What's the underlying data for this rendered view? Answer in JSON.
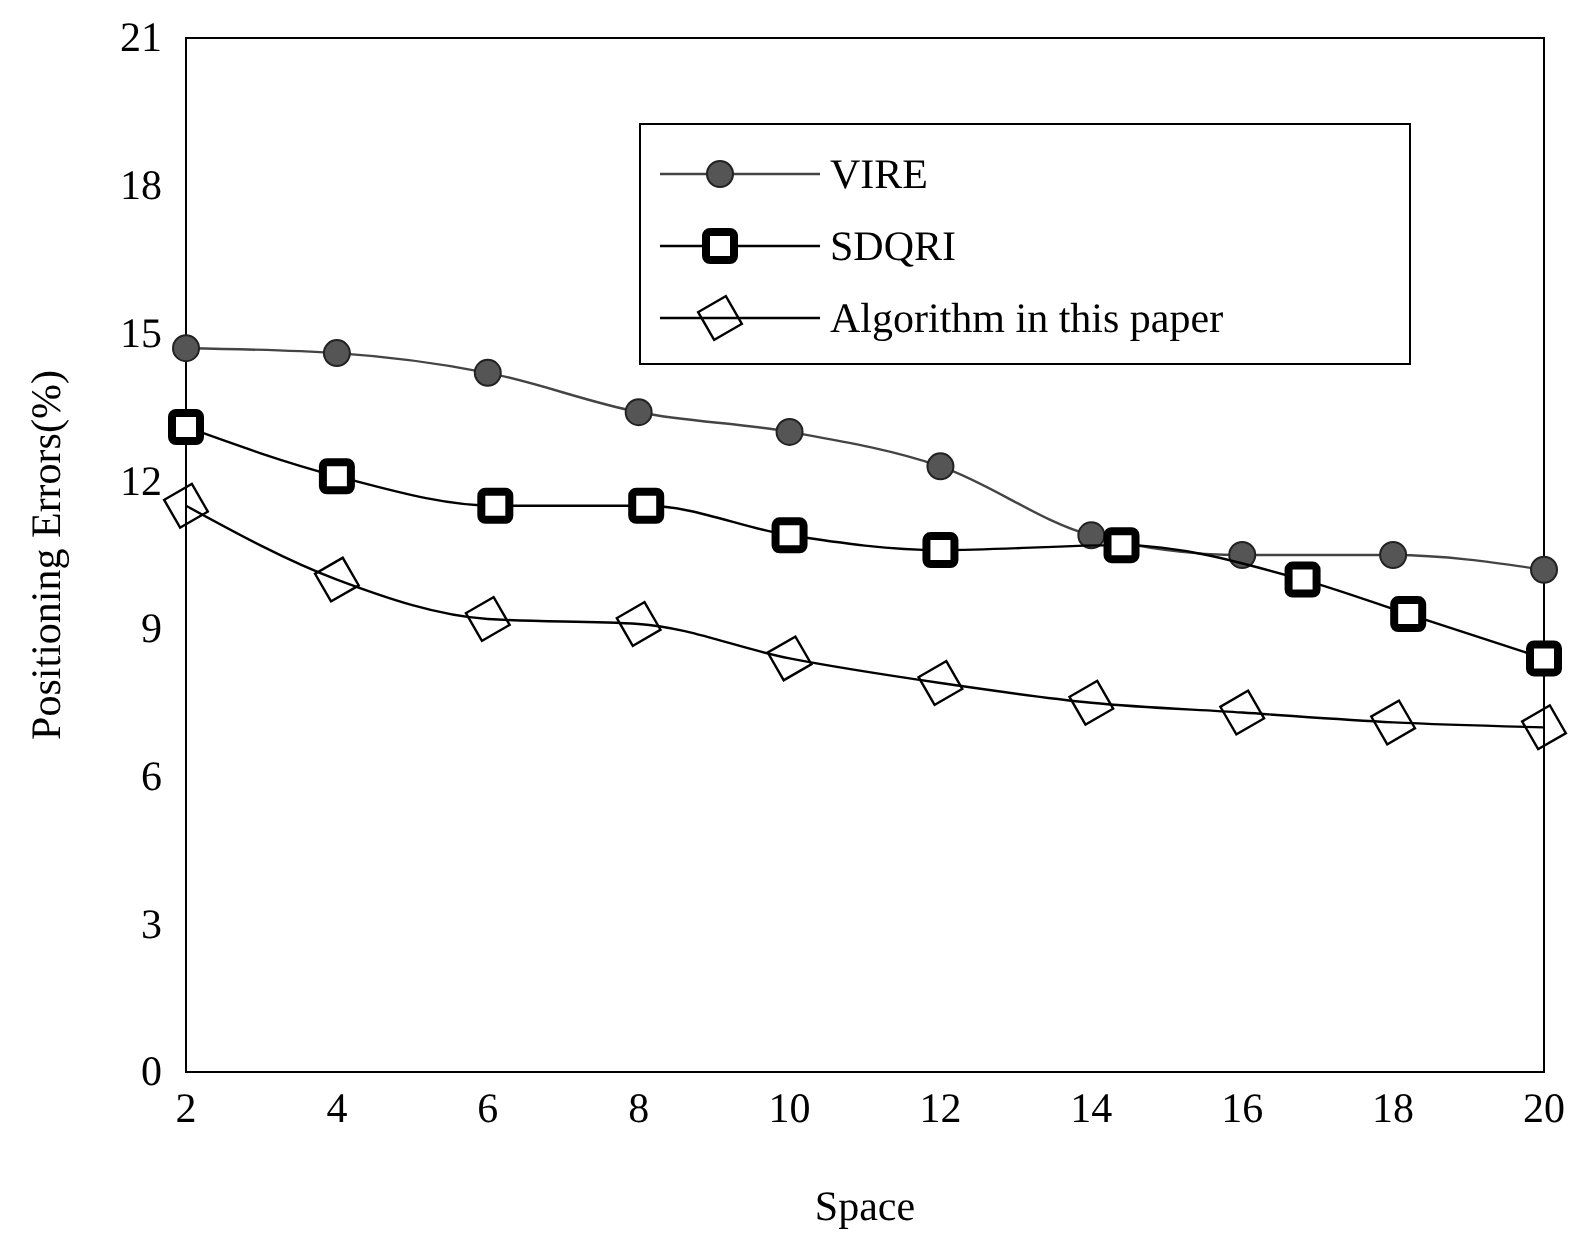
{
  "chart_data": {
    "type": "line",
    "xlabel": "Space",
    "ylabel": "Positioning Errors(%)",
    "xlim": [
      2,
      20
    ],
    "xticks": [
      2,
      4,
      6,
      8,
      10,
      12,
      14,
      16,
      18,
      20
    ],
    "ylim": [
      0,
      21
    ],
    "yticks": [
      0,
      3,
      6,
      9,
      12,
      15,
      18,
      21
    ],
    "grid": false,
    "legend": "top right",
    "line_style": "solid",
    "series": [
      {
        "name": "VIRE",
        "color": "#444444",
        "marker": "circle",
        "x": [
          2,
          4,
          6,
          8,
          10,
          12,
          14,
          16,
          18,
          20
        ],
        "values": [
          14.7,
          14.6,
          14.2,
          13.4,
          13.0,
          12.3,
          10.9,
          10.5,
          10.5,
          10.2
        ]
      },
      {
        "name": "SDQRI",
        "color": "#000000",
        "marker": "square",
        "x": [
          2,
          4,
          6.1,
          8.1,
          10,
          12,
          14.4,
          16.8,
          18.2,
          20
        ],
        "values": [
          13.1,
          12.1,
          11.5,
          11.5,
          10.9,
          10.6,
          10.7,
          10.0,
          9.3,
          8.4
        ]
      },
      {
        "name": "Algorithm in this paper",
        "color": "#000000",
        "marker": "diamond",
        "x": [
          2,
          4,
          6,
          8,
          10,
          12,
          14,
          16,
          18,
          20
        ],
        "values": [
          11.5,
          10.0,
          9.2,
          9.1,
          8.4,
          7.9,
          7.5,
          7.3,
          7.1,
          7.0
        ]
      }
    ]
  }
}
